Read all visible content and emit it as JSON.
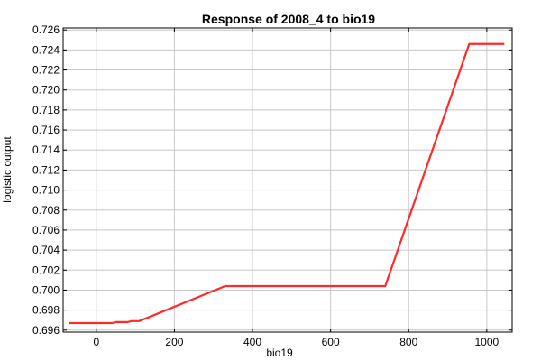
{
  "chart_data": {
    "type": "line",
    "title": "Response of 2008_4 to bio19",
    "xlabel": "bio19",
    "ylabel": "logistic output",
    "xlim": [
      -85,
      1065
    ],
    "ylim": [
      0.6958,
      0.7262
    ],
    "xticks": [
      0,
      200,
      400,
      600,
      800,
      1000
    ],
    "yticks": [
      0.696,
      0.698,
      0.7,
      0.702,
      0.704,
      0.706,
      0.708,
      0.71,
      0.712,
      0.714,
      0.716,
      0.718,
      0.72,
      0.722,
      0.724,
      0.726
    ],
    "grid": true,
    "series": [
      {
        "color": "#ff2a2a",
        "x": [
          -70,
          40,
          50,
          80,
          90,
          110,
          330,
          740,
          955,
          1045
        ],
        "y": [
          0.6967,
          0.6967,
          0.6968,
          0.6968,
          0.6969,
          0.6969,
          0.7004,
          0.7004,
          0.7246,
          0.7246
        ]
      }
    ]
  }
}
